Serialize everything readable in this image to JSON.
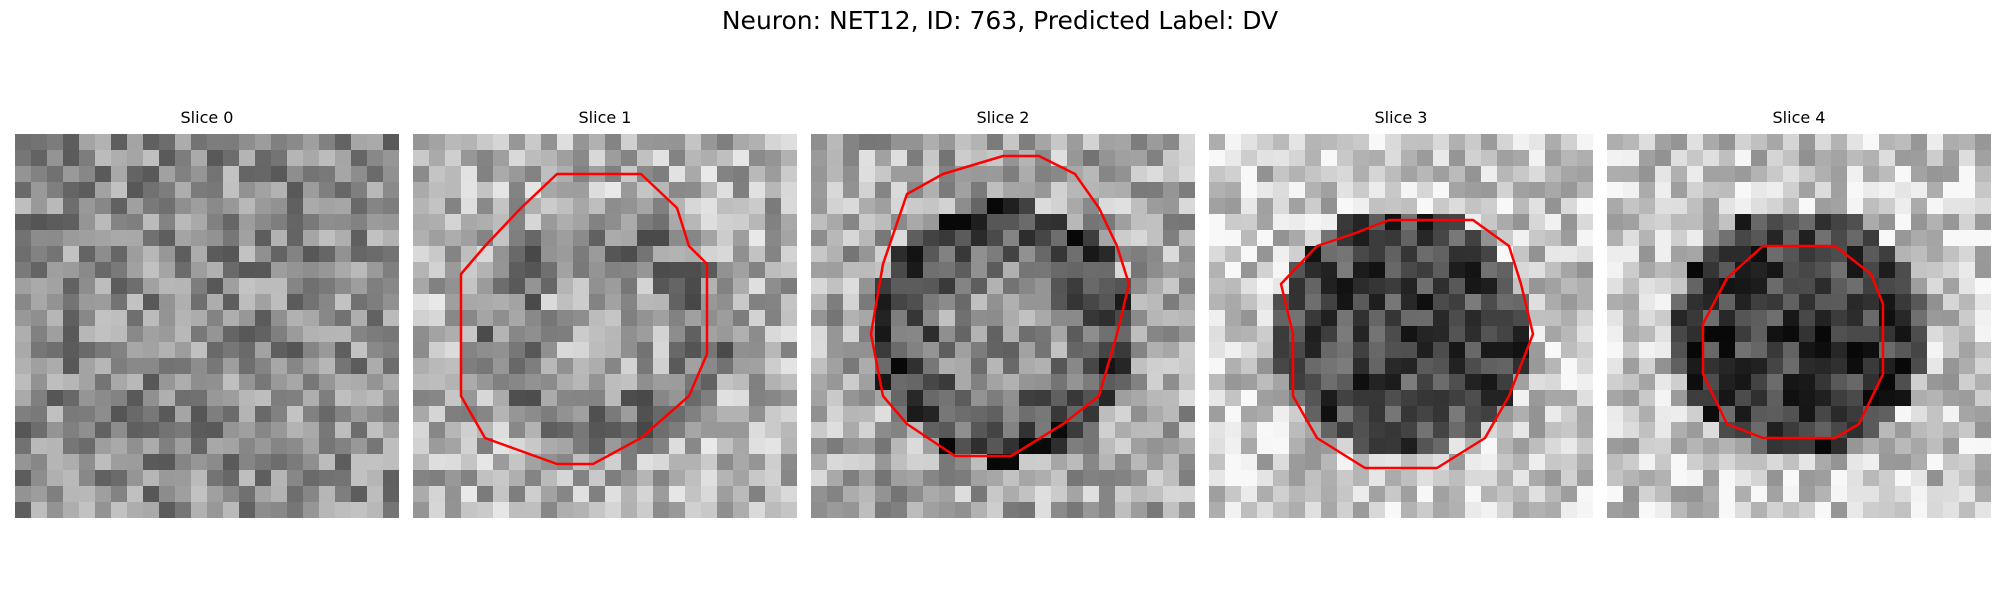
{
  "figure": {
    "title": "Neuron: NET12, ID: 763, Predicted Label: DV"
  },
  "panels": [
    {
      "title": "Slice 0",
      "has_contour": false,
      "seed": 11,
      "mean_gray": 140,
      "cell_gray": 140
    },
    {
      "title": "Slice 1",
      "has_contour": true,
      "seed": 23,
      "mean_gray": 178,
      "cell_gray": 125
    },
    {
      "title": "Slice 2",
      "has_contour": true,
      "seed": 37,
      "mean_gray": 170,
      "cell_gray": 95
    },
    {
      "title": "Slice 3",
      "has_contour": true,
      "seed": 51,
      "mean_gray": 200,
      "cell_gray": 70
    },
    {
      "title": "Slice 4",
      "has_contour": true,
      "seed": 67,
      "mean_gray": 200,
      "cell_gray": 60
    }
  ],
  "colors": {
    "contour": "#ff0000",
    "background": "#ffffff"
  }
}
